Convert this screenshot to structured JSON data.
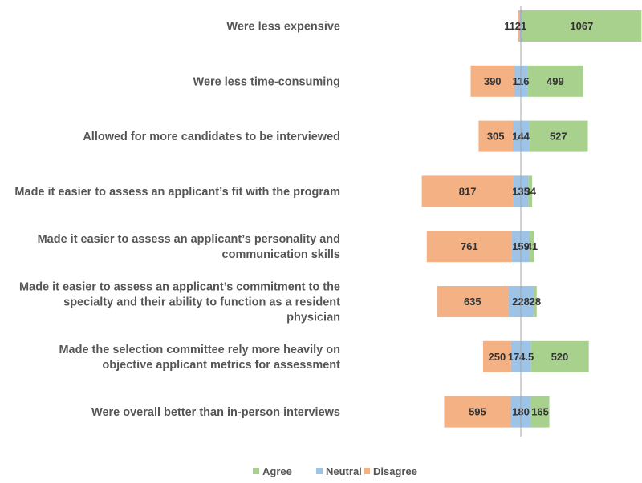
{
  "chart_data": {
    "type": "bar",
    "orientation": "horizontal",
    "stacking": "diverging",
    "categories": [
      [
        "Were less expensive"
      ],
      [
        "Were less time-consuming"
      ],
      [
        "Allowed for more candidates to be interviewed"
      ],
      [
        "Made it easier to assess an applicant’s fit with the program"
      ],
      [
        "Made it easier to assess an applicant’s personality and",
        "communication skills"
      ],
      [
        "Made it easier to assess an applicant’s commitment to the",
        "specialty and their ability to function as a resident",
        "physician"
      ],
      [
        "Made the selection committee rely more heavily on",
        "objective applicant metrics for assessment"
      ],
      [
        "Were overall better than in-person interviews"
      ]
    ],
    "series": [
      {
        "name": "Disagree",
        "color": "#f4b183",
        "values": [
          11,
          390,
          305,
          817,
          761,
          635,
          250,
          595
        ]
      },
      {
        "name": "Neutral",
        "color": "#9dc3e6",
        "values": [
          21,
          116,
          144,
          135,
          159,
          228,
          174.5,
          180
        ]
      },
      {
        "name": "Agree",
        "color": "#a9d18e",
        "values": [
          1067,
          499,
          527,
          34,
          41,
          28,
          520,
          165
        ]
      }
    ],
    "value_labels": [
      [
        "11",
        "21",
        "1067"
      ],
      [
        "390",
        "116",
        "499"
      ],
      [
        "305",
        "144",
        "527"
      ],
      [
        "817",
        "135",
        "34"
      ],
      [
        "761",
        "159",
        "41"
      ],
      [
        "635",
        "228",
        "28"
      ],
      [
        "250",
        "174.5",
        "520"
      ],
      [
        "595",
        "180",
        "165"
      ]
    ],
    "legend": {
      "entries": [
        "Agree",
        "Neutral",
        "Disagree"
      ],
      "position": "bottom"
    },
    "zero_line": "middle of Neutral segment",
    "grid": false
  }
}
